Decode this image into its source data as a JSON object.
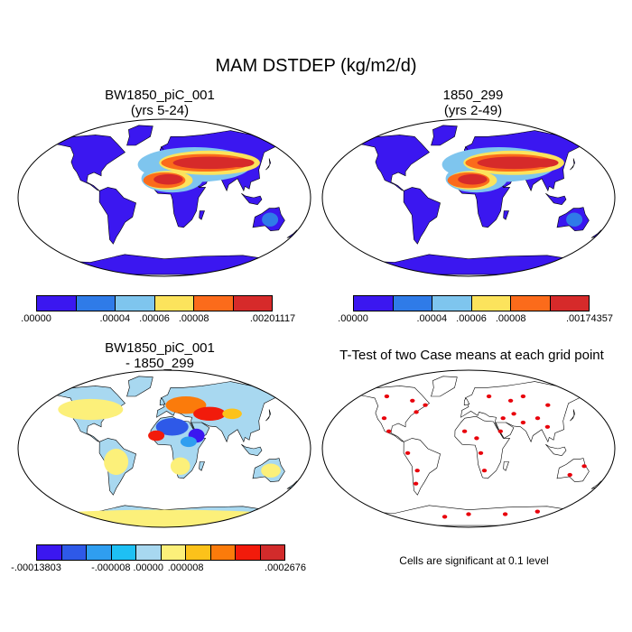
{
  "colors": {
    "land_outline": "#000000",
    "ocean": "#ffffff",
    "significant": "#e8000b"
  },
  "chart_data": [
    {
      "type": "heatmap",
      "title": "MAM DSTDEP (kg/m2/d)",
      "panel_title": "BW1850_piC_001",
      "panel_subtitle": "(yrs 5-24)",
      "projection": "robinson",
      "colorbar": {
        "colors": [
          "#3b17f0",
          "#2f7be8",
          "#7ec5ee",
          "#fce35c",
          "#fb6b1b",
          "#d62a2a"
        ],
        "labels": [
          ".00000",
          ".00004",
          ".00006",
          ".00008",
          ".00201117"
        ],
        "label_positions": [
          0,
          2,
          3,
          4,
          6
        ]
      }
    },
    {
      "type": "heatmap",
      "panel_title": "1850_299",
      "panel_subtitle": "(yrs 2-49)",
      "projection": "robinson",
      "colorbar": {
        "colors": [
          "#3b17f0",
          "#2f7be8",
          "#7ec5ee",
          "#fce35c",
          "#fb6b1b",
          "#d62a2a"
        ],
        "labels": [
          ".00000",
          ".00004",
          ".00006",
          ".00008",
          ".00174357"
        ],
        "label_positions": [
          0,
          2,
          3,
          4,
          6
        ]
      }
    },
    {
      "type": "heatmap",
      "panel_title": "BW1850_piC_001",
      "panel_subtitle": "- 1850_299",
      "projection": "robinson",
      "colorbar": {
        "colors": [
          "#3b17f0",
          "#2e59e8",
          "#2f9ef0",
          "#1ec0f4",
          "#a8d8f0",
          "#fcf07a",
          "#fcc21a",
          "#fb7b0b",
          "#f21b0b",
          "#d22b2b"
        ],
        "labels": [
          "-.00013803",
          "-.000008",
          ".00000",
          ".000008",
          ".0002676"
        ],
        "label_positions": [
          0,
          3,
          4.5,
          6,
          10
        ]
      }
    },
    {
      "type": "heatmap",
      "panel_title": "T-Test of two Case means at each grid point",
      "projection": "robinson",
      "note": "Cells are significant at 0.1 level"
    }
  ]
}
